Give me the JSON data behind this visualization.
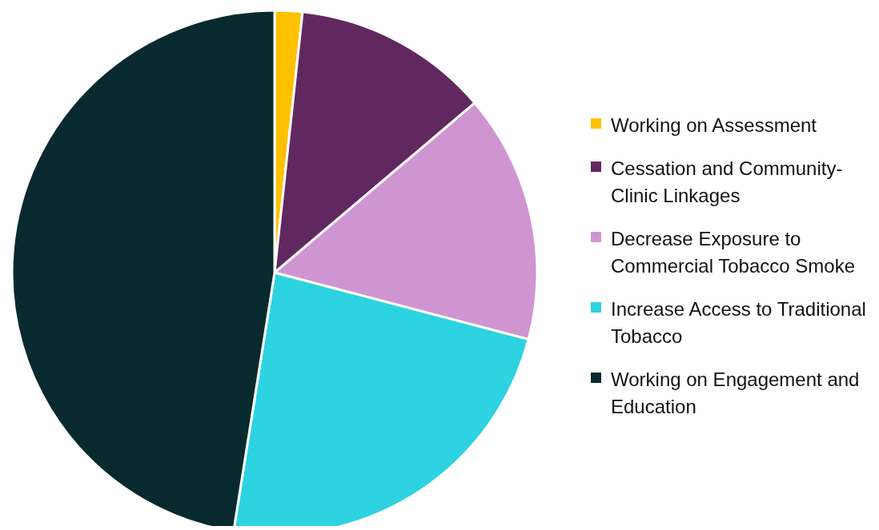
{
  "chart_data": {
    "type": "pie",
    "categories": [
      "Working on Assessment",
      "Cessation and Community-Clinic Linkages",
      "Decrease Exposure to Commercial Tobacco Smoke",
      "Increase Access to Traditional Tobacco",
      "Working on Engagement and Education"
    ],
    "values": [
      1.7,
      12.1,
      15.3,
      23.4,
      47.5
    ],
    "colors": [
      "#ffc000",
      "#60285f",
      "#cf95d3",
      "#2dd3e0",
      "#082a2f"
    ],
    "legend": "right"
  }
}
